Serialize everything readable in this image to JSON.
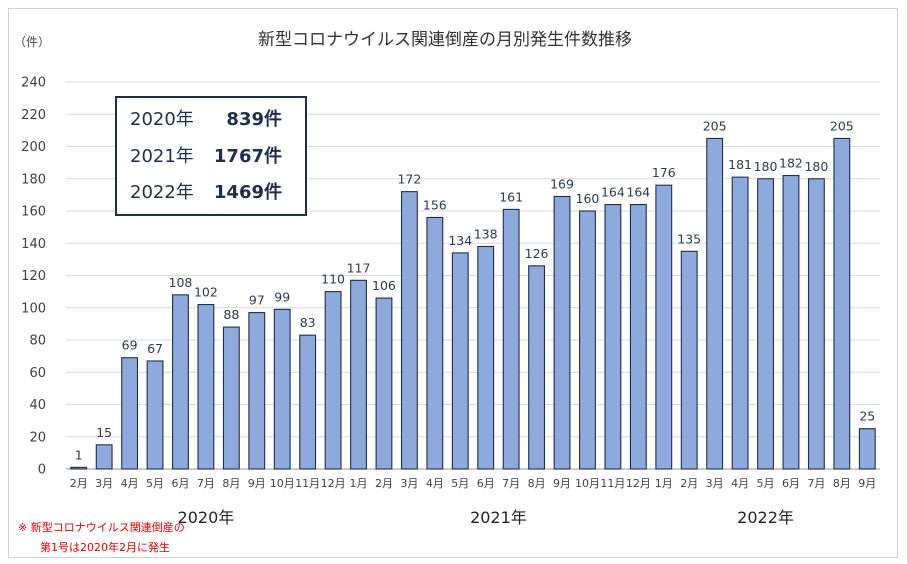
{
  "chart_data": {
    "type": "bar",
    "title": "新型コロナウイルス関連倒産の月別発生件数推移",
    "ylabel": "（件）",
    "ylim": [
      0,
      240
    ],
    "yticks": [
      0,
      20,
      40,
      60,
      80,
      100,
      120,
      140,
      160,
      180,
      200,
      220,
      240
    ],
    "grid": true,
    "bar_color": "#8ea9db",
    "bar_edge_color": "#1f2d4e",
    "categories": [
      "2月",
      "3月",
      "4月",
      "5月",
      "6月",
      "7月",
      "8月",
      "9月",
      "10月",
      "11月",
      "12月",
      "1月",
      "2月",
      "3月",
      "4月",
      "5月",
      "6月",
      "7月",
      "8月",
      "9月",
      "10月",
      "11月",
      "12月",
      "1月",
      "2月",
      "3月",
      "4月",
      "5月",
      "6月",
      "7月",
      "8月",
      "9月"
    ],
    "values": [
      1,
      15,
      69,
      67,
      108,
      102,
      88,
      97,
      99,
      83,
      110,
      117,
      106,
      172,
      156,
      134,
      138,
      161,
      126,
      169,
      160,
      164,
      164,
      176,
      135,
      205,
      181,
      180,
      182,
      180,
      205,
      25
    ],
    "data_labels": [
      "1",
      "15",
      "69",
      "67",
      "108",
      "102",
      "88",
      "97",
      "99",
      "83",
      "110",
      "117",
      "106",
      "172",
      "156",
      "134",
      "138",
      "161",
      "126",
      "169",
      "160",
      "164",
      "164",
      "176",
      "135",
      "205",
      "181",
      "180",
      "182",
      "180",
      "205",
      "25"
    ],
    "year_groups": [
      {
        "label": "2020年",
        "start": 0,
        "end": 10
      },
      {
        "label": "2021年",
        "start": 11,
        "end": 22
      },
      {
        "label": "2022年",
        "start": 23,
        "end": 31
      }
    ]
  },
  "summary": [
    {
      "year": "2020年",
      "count": "839件"
    },
    {
      "year": "2021年",
      "count": "1767件"
    },
    {
      "year": "2022年",
      "count": "1469件"
    }
  ],
  "note": {
    "line1": "※ 新型コロナウイルス関連倒産の",
    "line2": "第1号は2020年2月に発生"
  }
}
